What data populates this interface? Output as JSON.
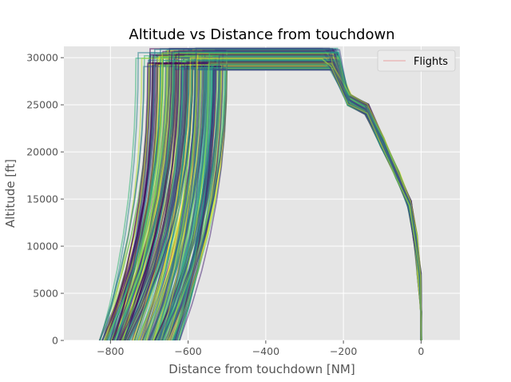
{
  "chart_data": {
    "type": "line",
    "title": "Altitude vs Distance from touchdown",
    "xlabel": "Distance from touchdown [NM]",
    "ylabel": "Altitude [ft]",
    "xlim": [
      -920,
      100
    ],
    "ylim": [
      0,
      31200
    ],
    "xticks": [
      -800,
      -600,
      -400,
      -200,
      0
    ],
    "yticks": [
      0,
      5000,
      10000,
      15000,
      20000,
      25000,
      30000
    ],
    "xtick_labels": [
      "−800",
      "−600",
      "−400",
      "−200",
      "0"
    ],
    "ytick_labels": [
      "0",
      "5000",
      "10000",
      "15000",
      "20000",
      "25000",
      "30000"
    ],
    "grid": true,
    "style": "ggplot",
    "colormap": "viridis",
    "legend": {
      "position": "top-right",
      "entries": [
        "Flights"
      ],
      "line_color": "#e8a0a0"
    },
    "flight_envelope": {
      "takeoff_distance_range": [
        -830,
        -620
      ],
      "top_of_climb_distance_range": [
        -700,
        -500
      ],
      "cruise_altitude_range": [
        28700,
        31000
      ],
      "top_of_descent_distance_range": [
        -260,
        -210
      ],
      "descent_profile": [
        {
          "x": -230,
          "y": 29500
        },
        {
          "x": -185,
          "y": 25500
        },
        {
          "x": -140,
          "y": 24500
        },
        {
          "x": -100,
          "y": 21000
        },
        {
          "x": -60,
          "y": 17500
        },
        {
          "x": -30,
          "y": 14500
        },
        {
          "x": -15,
          "y": 11000
        },
        {
          "x": -5,
          "y": 7000
        },
        {
          "x": 0,
          "y": 3000
        },
        {
          "x": 0,
          "y": 0
        }
      ]
    },
    "series": []
  }
}
